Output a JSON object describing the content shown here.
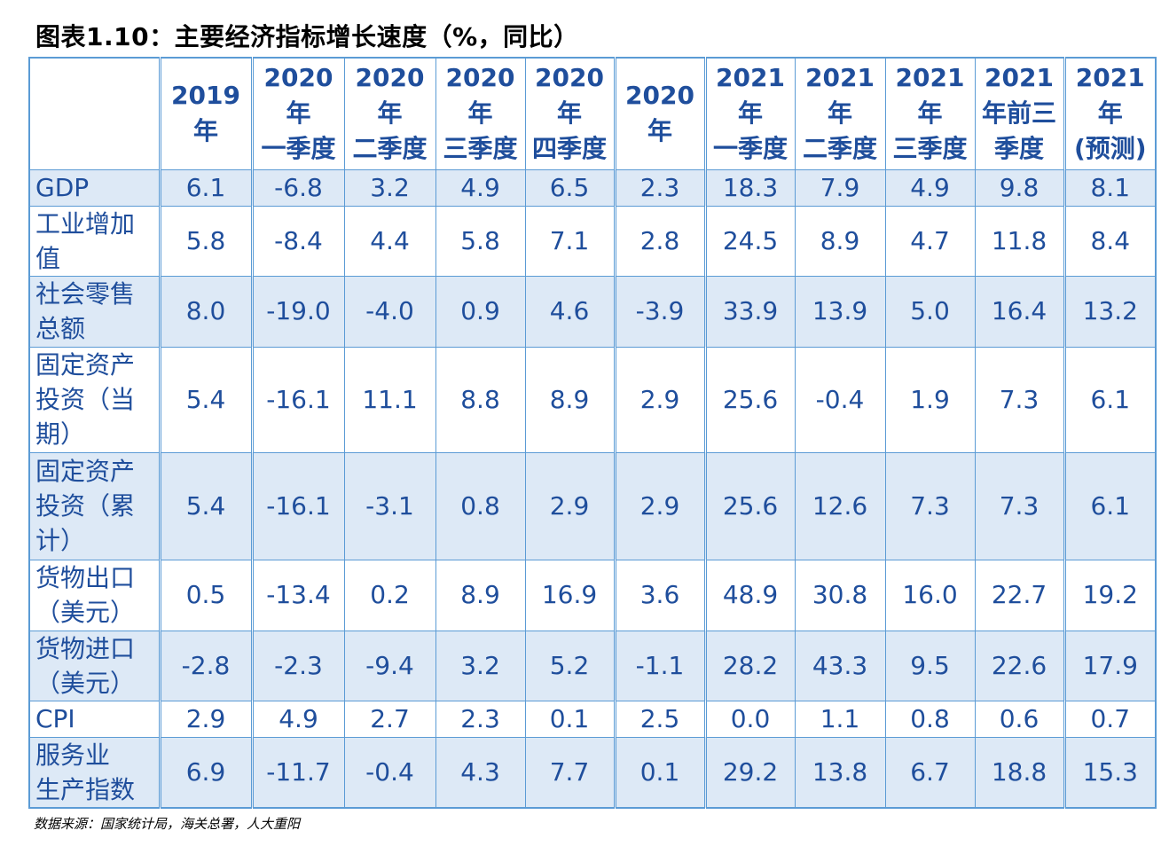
{
  "title": "图表1.10：主要经济指标增长速度（%，同比）",
  "source": "数据来源：国家统计局，海关总署，人大重阳",
  "columns": [
    [
      "2019",
      "年"
    ],
    [
      "2020",
      "年",
      "一季度"
    ],
    [
      "2020",
      "年",
      "二季度"
    ],
    [
      "2020",
      "年",
      "三季度"
    ],
    [
      "2020",
      "年",
      "四季度"
    ],
    [
      "2020",
      "年"
    ],
    [
      "2021",
      "年",
      "一季度"
    ],
    [
      "2021",
      "年",
      "二季度"
    ],
    [
      "2021",
      "年",
      "三季度"
    ],
    [
      "2021",
      "年前三",
      "季度"
    ],
    [
      "2021",
      "年",
      "(预测)"
    ]
  ],
  "rows": [
    {
      "label": [
        "GDP"
      ],
      "values": [
        "6.1",
        "-6.8",
        "3.2",
        "4.9",
        "6.5",
        "2.3",
        "18.3",
        "7.9",
        "4.9",
        "9.8",
        "8.1"
      ]
    },
    {
      "label": [
        "工业增加",
        "值"
      ],
      "values": [
        "5.8",
        "-8.4",
        "4.4",
        "5.8",
        "7.1",
        "2.8",
        "24.5",
        "8.9",
        "4.7",
        "11.8",
        "8.4"
      ]
    },
    {
      "label": [
        "社会零售",
        "总额"
      ],
      "values": [
        "8.0",
        "-19.0",
        "-4.0",
        "0.9",
        "4.6",
        "-3.9",
        "33.9",
        "13.9",
        "5.0",
        "16.4",
        "13.2"
      ]
    },
    {
      "label": [
        "固定资产",
        "投资（当",
        "期）"
      ],
      "values": [
        "5.4",
        "-16.1",
        "11.1",
        "8.8",
        "8.9",
        "2.9",
        "25.6",
        "-0.4",
        "1.9",
        "7.3",
        "6.1"
      ]
    },
    {
      "label": [
        "固定资产",
        "投资（累",
        "计）"
      ],
      "values": [
        "5.4",
        "-16.1",
        "-3.1",
        "0.8",
        "2.9",
        "2.9",
        "25.6",
        "12.6",
        "7.3",
        "7.3",
        "6.1"
      ]
    },
    {
      "label": [
        "货物出口",
        "（美元）"
      ],
      "values": [
        "0.5",
        "-13.4",
        "0.2",
        "8.9",
        "16.9",
        "3.6",
        "48.9",
        "30.8",
        "16.0",
        "22.7",
        "19.2"
      ]
    },
    {
      "label": [
        "货物进口",
        "（美元）"
      ],
      "values": [
        "-2.8",
        "-2.3",
        "-9.4",
        "3.2",
        "5.2",
        "-1.1",
        "28.2",
        "43.3",
        "9.5",
        "22.6",
        "17.9"
      ]
    },
    {
      "label": [
        "CPI"
      ],
      "values": [
        "2.9",
        "4.9",
        "2.7",
        "2.3",
        "0.1",
        "2.5",
        "0.0",
        "1.1",
        "0.8",
        "0.6",
        "0.7"
      ]
    },
    {
      "label": [
        "服务业",
        "生产指数"
      ],
      "values": [
        "6.9",
        "-11.7",
        "-0.4",
        "4.3",
        "7.7",
        "0.1",
        "29.2",
        "13.8",
        "6.7",
        "18.8",
        "15.3"
      ]
    }
  ]
}
